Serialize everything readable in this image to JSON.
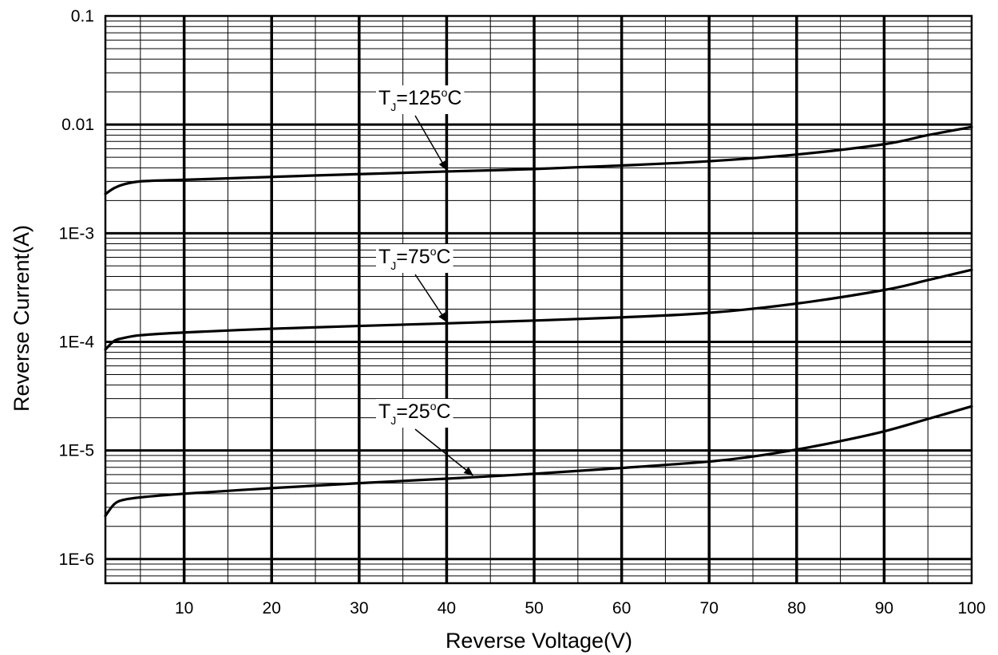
{
  "chart_data": {
    "type": "line",
    "title": "",
    "xlabel": "Reverse Voltage(V)",
    "ylabel": "Reverse  Current(A)",
    "xlim": [
      1,
      100
    ],
    "ylim": [
      6e-07,
      0.1
    ],
    "y_scale": "log",
    "grid": true,
    "x_ticks": [
      10,
      20,
      30,
      40,
      50,
      60,
      70,
      80,
      90,
      100
    ],
    "x_tick_labels": [
      "10",
      "20",
      "30",
      "40",
      "50",
      "60",
      "70",
      "80",
      "90",
      "100"
    ],
    "y_ticks": [
      1e-06,
      1e-05,
      0.0001,
      0.001,
      0.01,
      0.1
    ],
    "y_tick_labels": [
      "1E-6",
      "1E-5",
      "1E-4",
      "1E-3",
      "0.01",
      "0.1"
    ],
    "series": [
      {
        "name": "TJ=125°C",
        "label_main": "T",
        "label_sub": "J",
        "label_rest": "=125",
        "label_deg": "o",
        "label_unit": "C",
        "color": "#000000",
        "x": [
          1,
          2,
          3,
          5,
          10,
          20,
          30,
          40,
          50,
          60,
          70,
          80,
          90,
          95,
          100
        ],
        "y": [
          0.0023,
          0.0026,
          0.0028,
          0.003,
          0.0031,
          0.0033,
          0.0035,
          0.0037,
          0.0039,
          0.0042,
          0.0046,
          0.0053,
          0.0066,
          0.008,
          0.0095
        ]
      },
      {
        "name": "TJ=75°C",
        "label_main": "T",
        "label_sub": "J",
        "label_rest": "=75",
        "label_deg": "o",
        "label_unit": "C",
        "color": "#000000",
        "x": [
          1,
          2,
          3,
          5,
          10,
          20,
          30,
          40,
          50,
          60,
          70,
          80,
          90,
          95,
          100
        ],
        "y": [
          8.5e-05,
          0.000102,
          0.000108,
          0.000115,
          0.000122,
          0.000132,
          0.00014,
          0.000148,
          0.000157,
          0.000168,
          0.000185,
          0.000225,
          0.0003,
          0.00037,
          0.00046
        ]
      },
      {
        "name": "TJ=25°C",
        "label_main": "T",
        "label_sub": "J",
        "label_rest": "=25",
        "label_deg": "o",
        "label_unit": "C",
        "color": "#000000",
        "x": [
          1,
          2,
          3,
          5,
          10,
          20,
          30,
          40,
          50,
          60,
          70,
          75,
          80,
          85,
          90,
          95,
          100
        ],
        "y": [
          2.5e-06,
          3.2e-06,
          3.5e-06,
          3.7e-06,
          4e-06,
          4.5e-06,
          5e-06,
          5.5e-06,
          6.1e-06,
          6.9e-06,
          7.9e-06,
          8.8e-06,
          1.02e-05,
          1.22e-05,
          1.5e-05,
          1.95e-05,
          2.55e-05
        ]
      }
    ],
    "annotations": [
      {
        "series": 0,
        "arrow_to_x": 40,
        "arrow_to_y": 0.0037
      },
      {
        "series": 1,
        "arrow_to_x": 40,
        "arrow_to_y": 0.000148
      },
      {
        "series": 2,
        "arrow_to_x": 43,
        "arrow_to_y": 5.7e-06
      }
    ]
  }
}
